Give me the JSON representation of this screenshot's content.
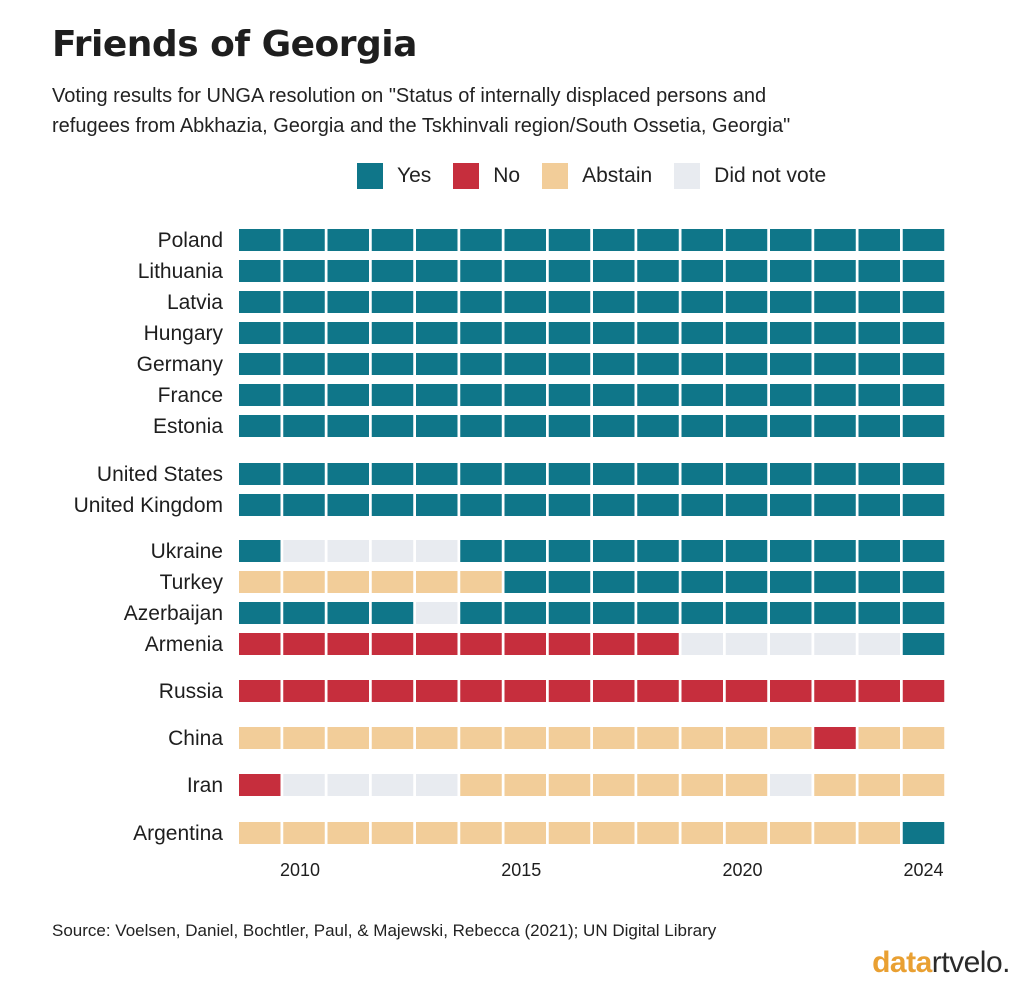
{
  "title": "Friends of Georgia",
  "subtitle_line1": "Voting results for UNGA resolution on \"Status of internally displaced persons and",
  "subtitle_line2": "refugees from Abkhazia, Georgia and the Tskhinvali region/South Ossetia, Georgia\"",
  "source": "Source: Voelsen, Daniel, Bochtler, Paul, & Majewski, Rebecca (2021); UN Digital Library",
  "logo": {
    "part1": "data",
    "part2": "rtvelo."
  },
  "colors": {
    "Y": "#0F7689",
    "N": "#C62E3D",
    "A": "#F2CD99",
    "D": "#E8EBF0",
    "logo_accent": "#E9A032"
  },
  "legend": [
    {
      "code": "Y",
      "label": "Yes"
    },
    {
      "code": "N",
      "label": "No"
    },
    {
      "code": "A",
      "label": "Abstain"
    },
    {
      "code": "D",
      "label": "Did not vote"
    }
  ],
  "chart_data": {
    "type": "heatmap",
    "title": "Friends of Georgia",
    "x": [
      2009,
      2010,
      2011,
      2012,
      2013,
      2014,
      2015,
      2016,
      2017,
      2018,
      2019,
      2020,
      2021,
      2022,
      2023,
      2024
    ],
    "x_tick_labels": [
      "2010",
      "2015",
      "2020",
      "2024"
    ],
    "x_tick_values": [
      2010,
      2015,
      2020,
      2024
    ],
    "legend_placement": "top",
    "value_codes": {
      "Y": "Yes",
      "N": "No",
      "A": "Abstain",
      "D": "Did not vote"
    },
    "groups": [
      {
        "rows": [
          {
            "country": "Poland",
            "votes": [
              "Y",
              "Y",
              "Y",
              "Y",
              "Y",
              "Y",
              "Y",
              "Y",
              "Y",
              "Y",
              "Y",
              "Y",
              "Y",
              "Y",
              "Y",
              "Y"
            ]
          },
          {
            "country": "Lithuania",
            "votes": [
              "Y",
              "Y",
              "Y",
              "Y",
              "Y",
              "Y",
              "Y",
              "Y",
              "Y",
              "Y",
              "Y",
              "Y",
              "Y",
              "Y",
              "Y",
              "Y"
            ]
          },
          {
            "country": "Latvia",
            "votes": [
              "Y",
              "Y",
              "Y",
              "Y",
              "Y",
              "Y",
              "Y",
              "Y",
              "Y",
              "Y",
              "Y",
              "Y",
              "Y",
              "Y",
              "Y",
              "Y"
            ]
          },
          {
            "country": "Hungary",
            "votes": [
              "Y",
              "Y",
              "Y",
              "Y",
              "Y",
              "Y",
              "Y",
              "Y",
              "Y",
              "Y",
              "Y",
              "Y",
              "Y",
              "Y",
              "Y",
              "Y"
            ]
          },
          {
            "country": "Germany",
            "votes": [
              "Y",
              "Y",
              "Y",
              "Y",
              "Y",
              "Y",
              "Y",
              "Y",
              "Y",
              "Y",
              "Y",
              "Y",
              "Y",
              "Y",
              "Y",
              "Y"
            ]
          },
          {
            "country": "France",
            "votes": [
              "Y",
              "Y",
              "Y",
              "Y",
              "Y",
              "Y",
              "Y",
              "Y",
              "Y",
              "Y",
              "Y",
              "Y",
              "Y",
              "Y",
              "Y",
              "Y"
            ]
          },
          {
            "country": "Estonia",
            "votes": [
              "Y",
              "Y",
              "Y",
              "Y",
              "Y",
              "Y",
              "Y",
              "Y",
              "Y",
              "Y",
              "Y",
              "Y",
              "Y",
              "Y",
              "Y",
              "Y"
            ]
          }
        ]
      },
      {
        "rows": [
          {
            "country": "United States",
            "votes": [
              "Y",
              "Y",
              "Y",
              "Y",
              "Y",
              "Y",
              "Y",
              "Y",
              "Y",
              "Y",
              "Y",
              "Y",
              "Y",
              "Y",
              "Y",
              "Y"
            ]
          },
          {
            "country": "United Kingdom",
            "votes": [
              "Y",
              "Y",
              "Y",
              "Y",
              "Y",
              "Y",
              "Y",
              "Y",
              "Y",
              "Y",
              "Y",
              "Y",
              "Y",
              "Y",
              "Y",
              "Y"
            ]
          }
        ]
      },
      {
        "rows": [
          {
            "country": "Ukraine",
            "votes": [
              "Y",
              "D",
              "D",
              "D",
              "D",
              "Y",
              "Y",
              "Y",
              "Y",
              "Y",
              "Y",
              "Y",
              "Y",
              "Y",
              "Y",
              "Y"
            ]
          },
          {
            "country": "Turkey",
            "votes": [
              "A",
              "A",
              "A",
              "A",
              "A",
              "A",
              "Y",
              "Y",
              "Y",
              "Y",
              "Y",
              "Y",
              "Y",
              "Y",
              "Y",
              "Y"
            ]
          },
          {
            "country": "Azerbaijan",
            "votes": [
              "Y",
              "Y",
              "Y",
              "Y",
              "D",
              "Y",
              "Y",
              "Y",
              "Y",
              "Y",
              "Y",
              "Y",
              "Y",
              "Y",
              "Y",
              "Y"
            ]
          },
          {
            "country": "Armenia",
            "votes": [
              "N",
              "N",
              "N",
              "N",
              "N",
              "N",
              "N",
              "N",
              "N",
              "N",
              "D",
              "D",
              "D",
              "D",
              "D",
              "Y"
            ]
          }
        ]
      },
      {
        "rows": [
          {
            "country": "Russia",
            "votes": [
              "N",
              "N",
              "N",
              "N",
              "N",
              "N",
              "N",
              "N",
              "N",
              "N",
              "N",
              "N",
              "N",
              "N",
              "N",
              "N"
            ]
          }
        ]
      },
      {
        "rows": [
          {
            "country": "China",
            "votes": [
              "A",
              "A",
              "A",
              "A",
              "A",
              "A",
              "A",
              "A",
              "A",
              "A",
              "A",
              "A",
              "A",
              "N",
              "A",
              "A"
            ]
          }
        ]
      },
      {
        "rows": [
          {
            "country": "Iran",
            "votes": [
              "N",
              "D",
              "D",
              "D",
              "D",
              "A",
              "A",
              "A",
              "A",
              "A",
              "A",
              "A",
              "D",
              "A",
              "A",
              "A"
            ]
          }
        ]
      },
      {
        "rows": [
          {
            "country": "Argentina",
            "votes": [
              "A",
              "A",
              "A",
              "A",
              "A",
              "A",
              "A",
              "A",
              "A",
              "A",
              "A",
              "A",
              "A",
              "A",
              "A",
              "Y"
            ]
          }
        ]
      }
    ]
  }
}
